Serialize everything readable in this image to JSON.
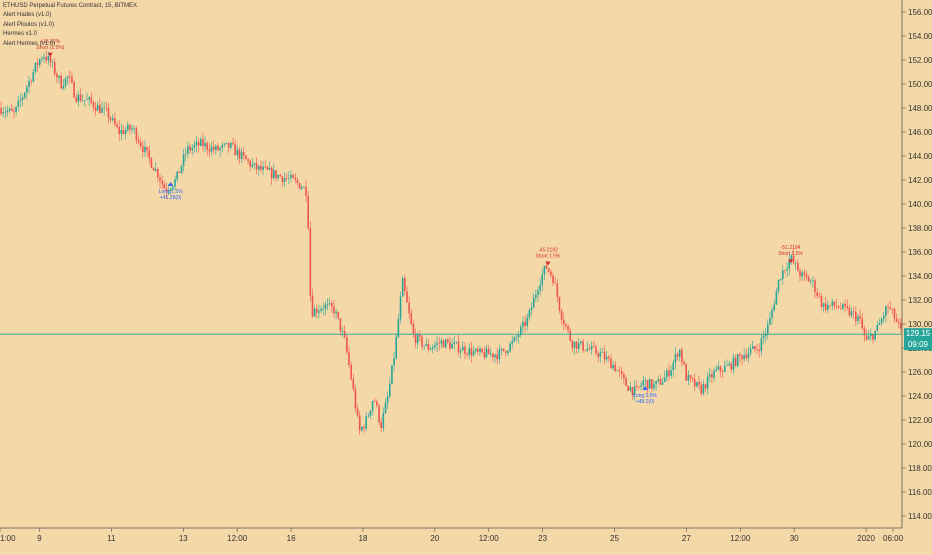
{
  "header": {
    "title": "ETHUSD Perpetual Futures Contract, 15, BITMEX",
    "indicators": [
      "Alert Hades (v1.0)",
      "Alert Ploutos (v1.0)",
      "Hermes v1.0",
      "Alert Hermes (v1.0)"
    ]
  },
  "price_tag": {
    "price": "129.15",
    "countdown": "09:09"
  },
  "colors": {
    "background": "#f5d8a8",
    "up": "#26a69a",
    "down": "#ef5350",
    "wick": "#555555",
    "price_line": "#26a69a",
    "long_signal": "#2962ff",
    "short_signal": "#d32f2f",
    "axis_text": "#333333"
  },
  "chart_data": {
    "type": "candlestick",
    "title": "ETHUSD Perpetual Futures Contract, 15, BITMEX",
    "y_axis": {
      "position": "right",
      "range": [
        113,
        157
      ],
      "ticks": [
        "156.00",
        "154.00",
        "152.00",
        "150.00",
        "148.00",
        "146.00",
        "144.00",
        "142.00",
        "140.00",
        "138.00",
        "136.00",
        "134.00",
        "132.00",
        "130.00",
        "128.00",
        "126.00",
        "124.00",
        "122.00",
        "120.00",
        "118.00",
        "116.00",
        "114.00"
      ]
    },
    "x_axis": {
      "ticks": [
        {
          "label": "1:00",
          "day": 7.9
        },
        {
          "label": "9",
          "day": 9.0
        },
        {
          "label": "11",
          "day": 11.0
        },
        {
          "label": "13",
          "day": 13.0
        },
        {
          "label": "12:00",
          "day": 14.5
        },
        {
          "label": "16",
          "day": 16.0
        },
        {
          "label": "18",
          "day": 18.0
        },
        {
          "label": "20",
          "day": 20.0
        },
        {
          "label": "12:00",
          "day": 21.5
        },
        {
          "label": "23",
          "day": 23.0
        },
        {
          "label": "25",
          "day": 25.0
        },
        {
          "label": "27",
          "day": 27.0
        },
        {
          "label": "12:00",
          "day": 28.5
        },
        {
          "label": "30",
          "day": 30.0
        },
        {
          "label": "2020",
          "day": 32.0
        },
        {
          "label": "06:00",
          "day": 32.75
        }
      ],
      "range": [
        7.9,
        33.0
      ]
    },
    "series": [
      {
        "price_path": [
          [
            7.9,
            148.0
          ],
          [
            8.3,
            147.5
          ],
          [
            8.6,
            149.5
          ],
          [
            8.9,
            151.5
          ],
          [
            9.1,
            152.5
          ],
          [
            9.3,
            151.8
          ],
          [
            9.6,
            150.0
          ],
          [
            9.8,
            150.6
          ],
          [
            10.0,
            149.0
          ],
          [
            10.4,
            148.5
          ],
          [
            10.9,
            147.5
          ],
          [
            11.2,
            146.0
          ],
          [
            11.6,
            146.3
          ],
          [
            12.0,
            144.0
          ],
          [
            12.3,
            142.5
          ],
          [
            12.5,
            141.2
          ],
          [
            12.8,
            142.0
          ],
          [
            13.1,
            144.5
          ],
          [
            13.5,
            145.0
          ],
          [
            13.9,
            144.5
          ],
          [
            14.3,
            144.8
          ],
          [
            14.6,
            144.0
          ],
          [
            15.0,
            143.0
          ],
          [
            15.5,
            142.5
          ],
          [
            16.0,
            142.0
          ],
          [
            16.3,
            141.5
          ],
          [
            16.45,
            141.0
          ],
          [
            16.55,
            131.0
          ],
          [
            16.9,
            131.5
          ],
          [
            17.2,
            131.2
          ],
          [
            17.5,
            128.5
          ],
          [
            17.7,
            125.0
          ],
          [
            17.9,
            121.0
          ],
          [
            18.1,
            122.0
          ],
          [
            18.3,
            124.0
          ],
          [
            18.5,
            121.5
          ],
          [
            18.7,
            124.0
          ],
          [
            18.9,
            128.0
          ],
          [
            19.1,
            133.5
          ],
          [
            19.4,
            129.0
          ],
          [
            19.8,
            128.0
          ],
          [
            20.2,
            128.5
          ],
          [
            20.7,
            128.0
          ],
          [
            21.2,
            127.5
          ],
          [
            21.8,
            127.5
          ],
          [
            22.2,
            128.5
          ],
          [
            22.6,
            130.5
          ],
          [
            22.9,
            133.5
          ],
          [
            23.1,
            134.8
          ],
          [
            23.3,
            133.8
          ],
          [
            23.5,
            131.0
          ],
          [
            23.8,
            128.5
          ],
          [
            24.2,
            128.0
          ],
          [
            24.6,
            127.5
          ],
          [
            25.0,
            126.5
          ],
          [
            25.3,
            125.0
          ],
          [
            25.6,
            124.3
          ],
          [
            25.8,
            125.2
          ],
          [
            26.1,
            124.8
          ],
          [
            26.4,
            125.5
          ],
          [
            26.6,
            126.5
          ],
          [
            26.8,
            128.0
          ],
          [
            27.0,
            125.5
          ],
          [
            27.4,
            124.5
          ],
          [
            27.8,
            126.0
          ],
          [
            28.2,
            126.5
          ],
          [
            28.6,
            127.5
          ],
          [
            29.0,
            128.0
          ],
          [
            29.3,
            130.0
          ],
          [
            29.6,
            134.0
          ],
          [
            29.9,
            135.5
          ],
          [
            30.2,
            134.0
          ],
          [
            30.5,
            133.5
          ],
          [
            30.8,
            131.5
          ],
          [
            31.2,
            131.5
          ],
          [
            31.5,
            131.0
          ],
          [
            31.8,
            130.5
          ],
          [
            32.0,
            128.5
          ],
          [
            32.3,
            129.5
          ],
          [
            32.6,
            131.5
          ],
          [
            32.8,
            130.5
          ],
          [
            33.0,
            129.15
          ]
        ]
      }
    ],
    "current_price": 129.15,
    "annotations": [
      {
        "kind": "short",
        "day": 9.3,
        "price": 152.6,
        "lines": [
          "+15.22%",
          "Short (1.5%)"
        ]
      },
      {
        "kind": "long",
        "day": 12.65,
        "price": 141.5,
        "lines": [
          "Long 1.5%",
          "+41.28(0)"
        ]
      },
      {
        "kind": "short",
        "day": 23.15,
        "price": 135.2,
        "lines": [
          "-45.2192",
          "Short 1.5%"
        ]
      },
      {
        "kind": "long",
        "day": 25.85,
        "price": 124.5,
        "lines": [
          "Long 0.5%",
          "+48.1(0)"
        ]
      },
      {
        "kind": "short",
        "day": 29.9,
        "price": 135.4,
        "lines": [
          "-51.2194",
          "Short 1.5%"
        ]
      }
    ]
  }
}
